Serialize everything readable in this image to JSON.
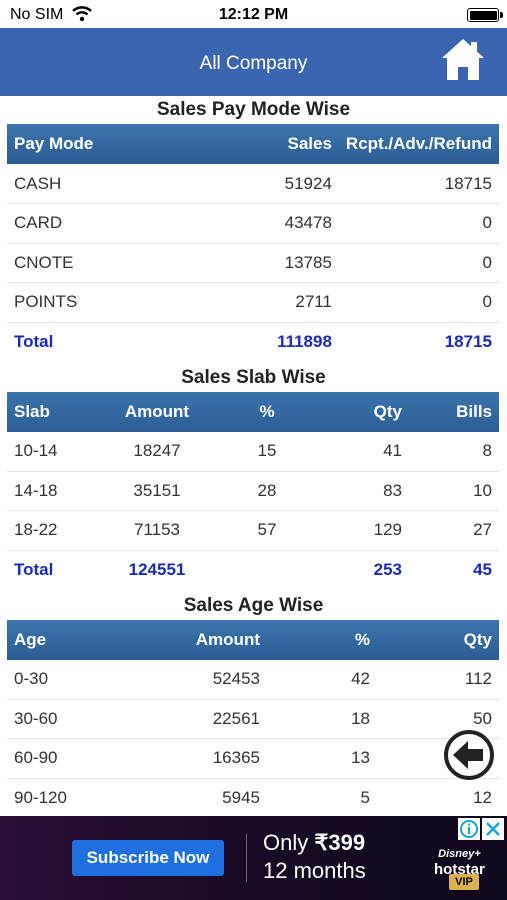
{
  "status_bar": {
    "carrier": "No SIM",
    "time": "12:12 PM"
  },
  "header": {
    "title": "All Company"
  },
  "pay_mode": {
    "title": "Sales Pay Mode Wise",
    "columns": [
      "Pay Mode",
      "Sales",
      "Rcpt./Adv./Refund"
    ],
    "rows": [
      [
        "CASH",
        "51924",
        "18715"
      ],
      [
        "CARD",
        "43478",
        "0"
      ],
      [
        "CNOTE",
        "13785",
        "0"
      ],
      [
        "POINTS",
        "2711",
        "0"
      ]
    ],
    "total": [
      "Total",
      "111898",
      "18715"
    ]
  },
  "slab": {
    "title": "Sales Slab Wise",
    "columns": [
      "Slab",
      "Amount",
      "%",
      "Qty",
      "Bills"
    ],
    "rows": [
      [
        "10-14",
        "18247",
        "15",
        "41",
        "8"
      ],
      [
        "14-18",
        "35151",
        "28",
        "83",
        "10"
      ],
      [
        "18-22",
        "71153",
        "57",
        "129",
        "27"
      ]
    ],
    "total": [
      "Total",
      "124551",
      "",
      "253",
      "45"
    ]
  },
  "age": {
    "title": "Sales Age Wise",
    "columns": [
      "Age",
      "Amount",
      "%",
      "Qty"
    ],
    "rows": [
      [
        "0-30",
        "52453",
        "42",
        "112"
      ],
      [
        "30-60",
        "22561",
        "18",
        "50"
      ],
      [
        "60-90",
        "16365",
        "13",
        "34"
      ],
      [
        "90-120",
        "5945",
        "5",
        "12"
      ]
    ]
  },
  "ad": {
    "button": "Subscribe Now",
    "offer_prefix": "Only ",
    "offer_price": "₹399",
    "offer_duration": "12 months",
    "brand_line1": "Disney+",
    "brand_line2": "hotstar",
    "badge": "VIP"
  },
  "colors": {
    "nav": "#3b65b0",
    "table_header": "#2f5f99",
    "total_text": "#1b2cba"
  },
  "icons": [
    "wifi-icon",
    "battery-icon",
    "home-icon",
    "back-arrow-icon",
    "ad-info-icon",
    "ad-close-icon"
  ]
}
